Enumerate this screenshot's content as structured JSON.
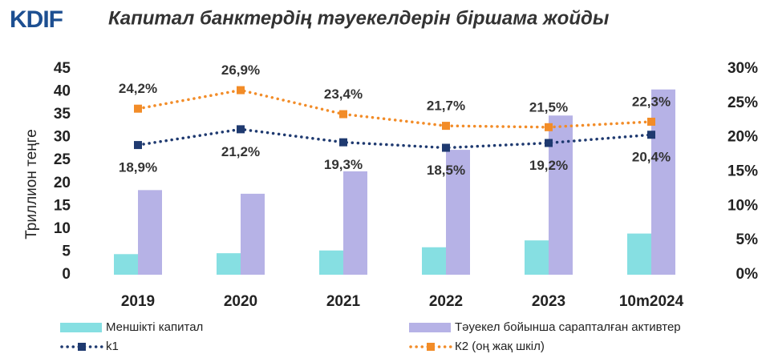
{
  "logo": "KDIF",
  "chart_data": {
    "type": "bar",
    "title": "Капитал банктердің тәуекелдерін біршама жойды",
    "y_label": "Триллион теңге",
    "categories": [
      "2019",
      "2020",
      "2021",
      "2022",
      "2023",
      "10m2024"
    ],
    "ylim": [
      0,
      45
    ],
    "yticks": [
      0,
      5,
      10,
      15,
      20,
      25,
      30,
      35,
      40,
      45
    ],
    "y2lim": [
      0,
      30
    ],
    "y2ticks": [
      {
        "value": 0,
        "label": "0%"
      },
      {
        "value": 5,
        "label": "5%"
      },
      {
        "value": 10,
        "label": "10%"
      },
      {
        "value": 15,
        "label": "15%"
      },
      {
        "value": 20,
        "label": "20%"
      },
      {
        "value": 25,
        "label": "25%"
      },
      {
        "value": 30,
        "label": "30%"
      }
    ],
    "grid": false,
    "series": [
      {
        "name": "Меншікті капитал",
        "type": "bar",
        "color": "#86dfe2",
        "values": [
          4.5,
          4.7,
          5.3,
          6.0,
          7.5,
          9.0
        ]
      },
      {
        "name": "Тәуекел бойынша сарапталған активтер",
        "type": "bar",
        "color": "#b6b2e6",
        "values": [
          18.5,
          17.7,
          22.6,
          27.3,
          34.8,
          40.5
        ]
      },
      {
        "name": "k1",
        "type": "line",
        "axis": "y2",
        "color": "#1f3a70",
        "label_pos": "below",
        "values": [
          18.9,
          21.2,
          19.3,
          18.5,
          19.2,
          20.4
        ],
        "value_labels": [
          "18,9%",
          "21,2%",
          "19,3%",
          "18,5%",
          "19,2%",
          "20,4%"
        ]
      },
      {
        "name": "К2 (оң жақ шкіл)",
        "type": "line",
        "axis": "y2",
        "color": "#f28c28",
        "label_pos": "above",
        "values": [
          24.2,
          26.9,
          23.4,
          21.7,
          21.5,
          22.3
        ],
        "value_labels": [
          "24,2%",
          "26,9%",
          "23,4%",
          "21,7%",
          "21,5%",
          "22,3%"
        ]
      }
    ]
  }
}
